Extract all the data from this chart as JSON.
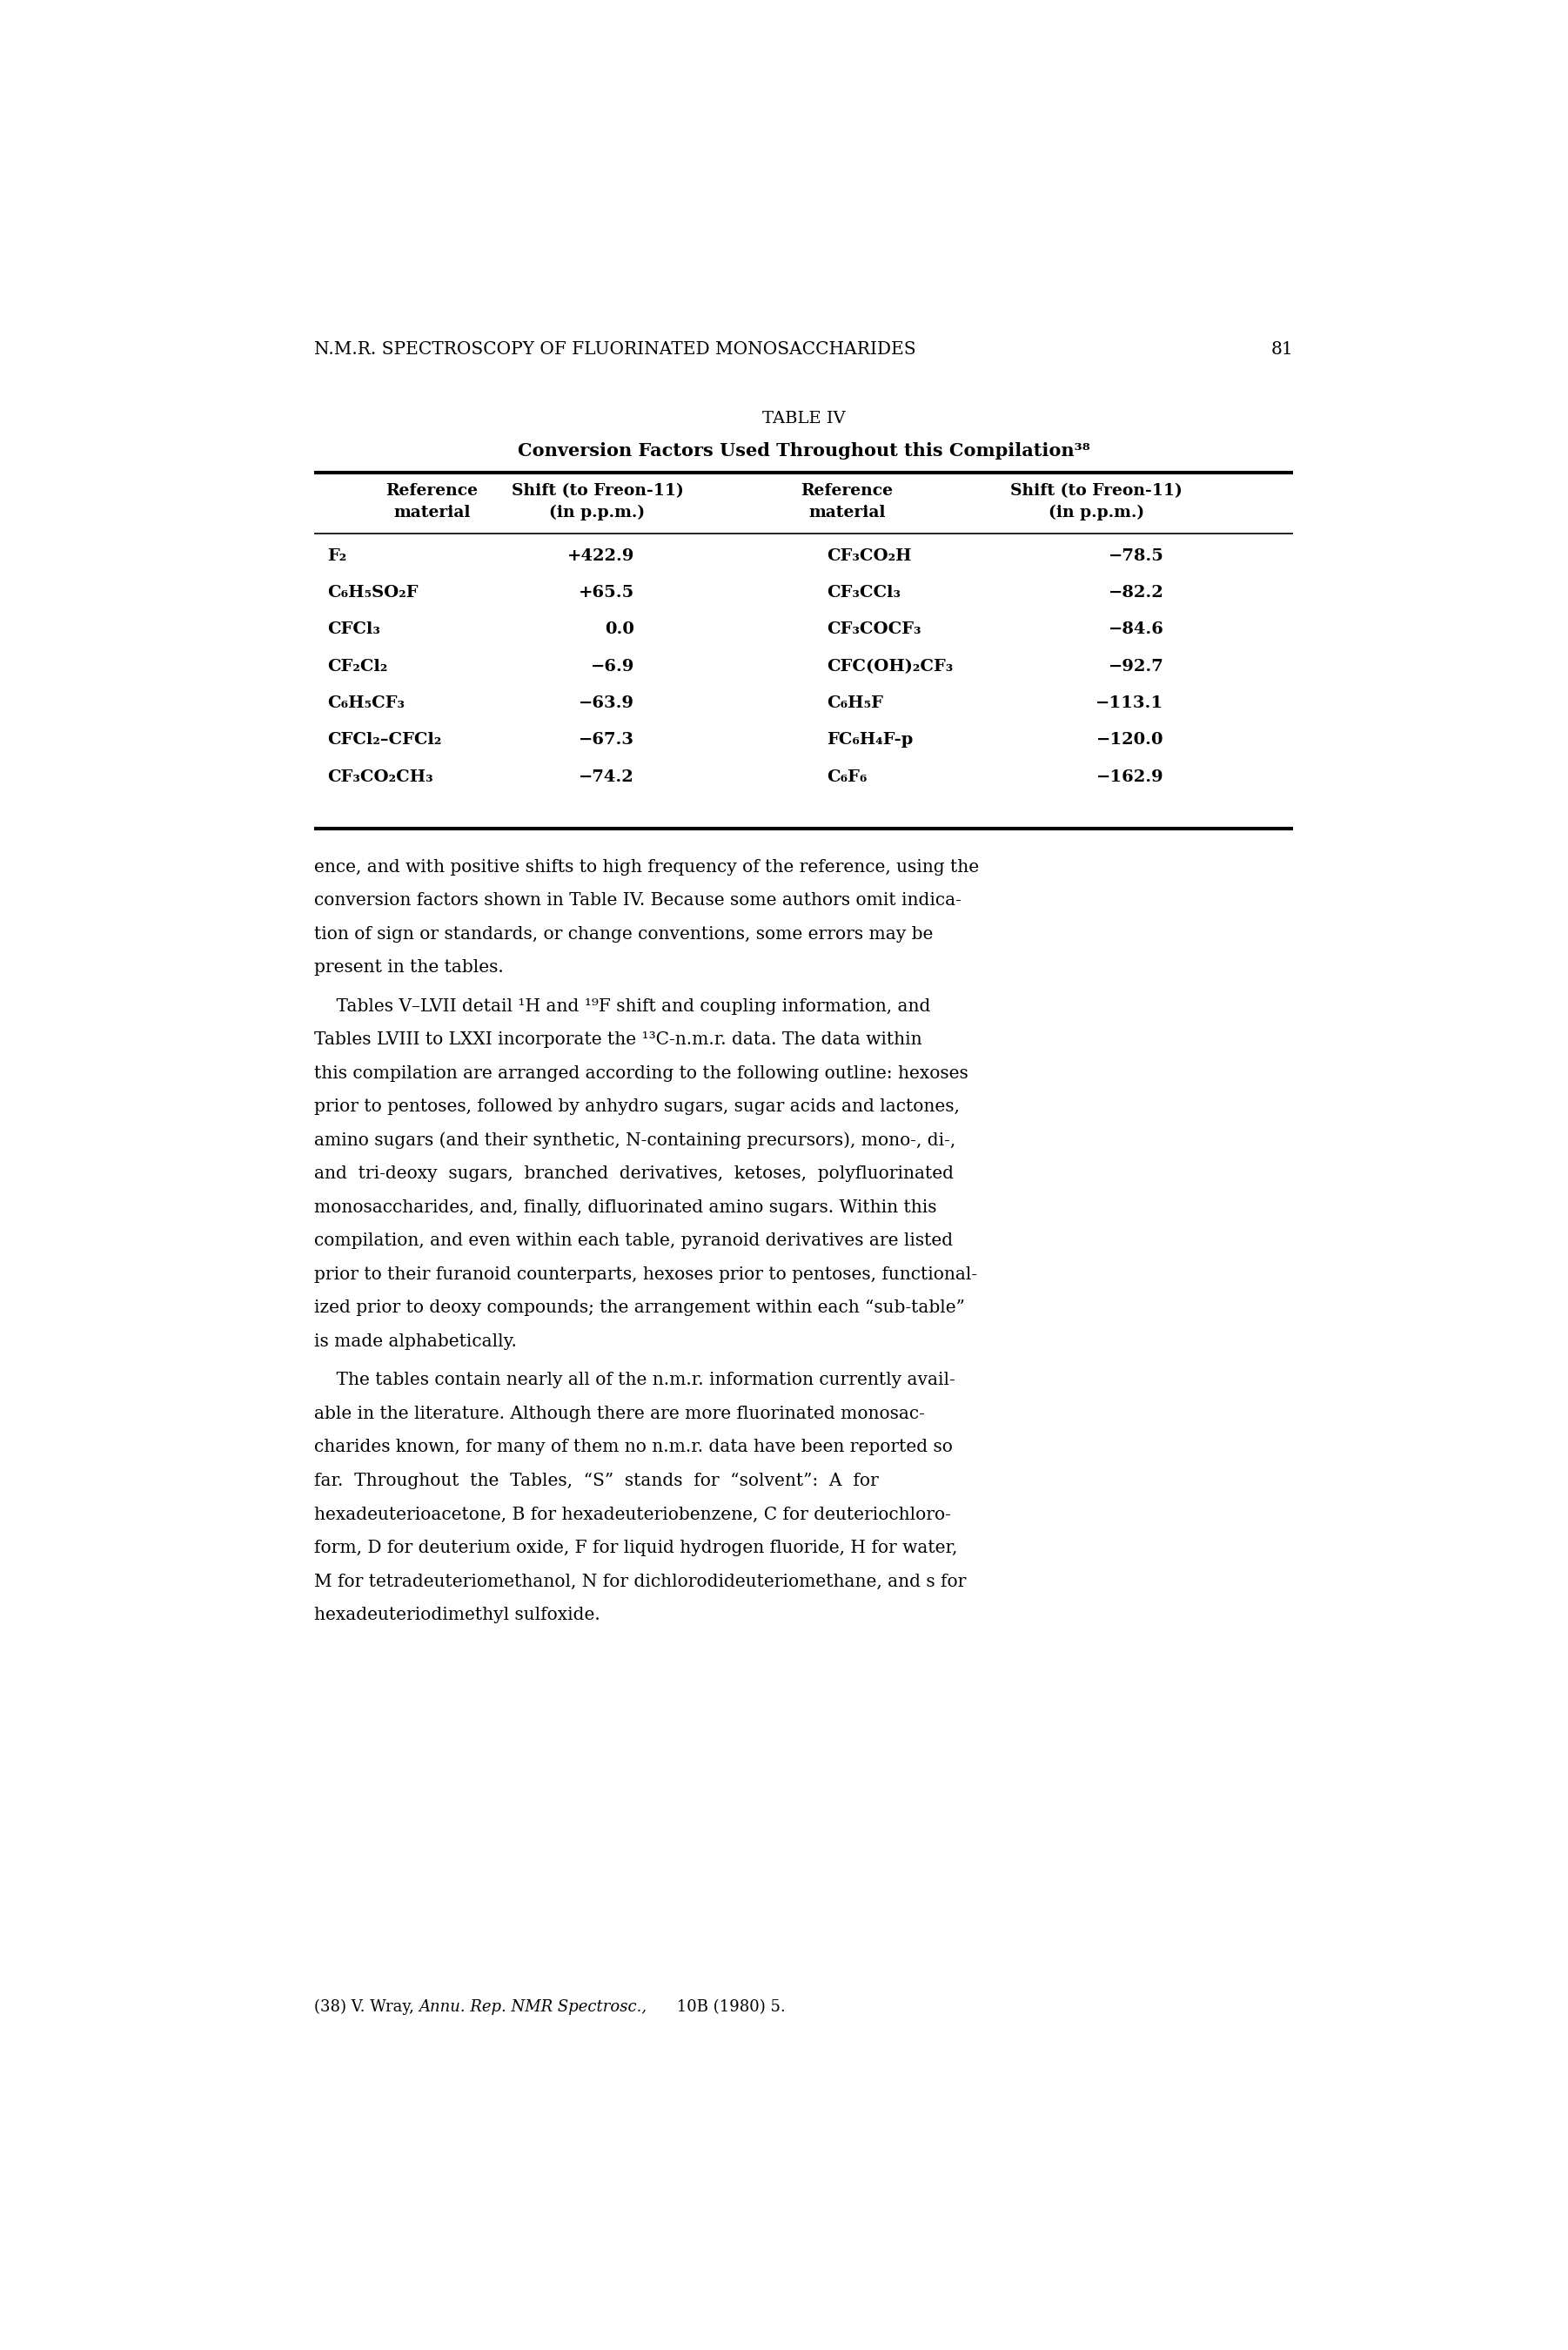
{
  "page_header": "N.M.R. SPECTROSCOPY OF FLUORINATED MONOSACCHARIDES    81",
  "table_title": "TABLE IV",
  "table_subtitle": "Conversion Factors Used Throughout this Compilation³⁸",
  "table_data": [
    [
      "F₂",
      "+422.9",
      "CF₃CO₂H",
      "−78.5"
    ],
    [
      "C₆H₅SO₂F",
      "+65.5",
      "CF₃CCl₃",
      "−82.2"
    ],
    [
      "CFCl₃",
      "0.0",
      "CF₃COCF₃",
      "−84.6"
    ],
    [
      "CF₂Cl₂",
      "−6.9",
      "CFC(OH)₂CF₃",
      "−92.7"
    ],
    [
      "C₆H₅CF₃",
      "−63.9",
      "C₆H₅F",
      "−113.1"
    ],
    [
      "CFCl₂–CFCl₂",
      "−67.3",
      "FC₆H₄F-p",
      "−120.0"
    ],
    [
      "CF₃CO₂CH₃",
      "−74.2",
      "C₆F₆",
      "−162.9"
    ]
  ],
  "para1_lines": [
    "ence, and with positive shifts to high frequency of the reference, using the",
    "conversion factors shown in Table IV. Because some authors omit indica-",
    "tion of sign or standards, or change conventions, some errors may be",
    "present in the tables."
  ],
  "para2_lines": [
    "    Tables V–LVII detail ¹H and ¹⁹F shift and coupling information, and",
    "Tables LVIII to LXXI incorporate the ¹³C-n.m.r. data. The data within",
    "this compilation are arranged according to the following outline: hexoses",
    "prior to pentoses, followed by anhydro sugars, sugar acids and lactones,",
    "amino sugars (and their synthetic, N-containing precursors), mono-, di-,",
    "and  tri-deoxy  sugars,  branched  derivatives,  ketoses,  polyfluorinated",
    "monosaccharides, and, finally, difluorinated amino sugars. Within this",
    "compilation, and even within each table, pyranoid derivatives are listed",
    "prior to their furanoid counterparts, hexoses prior to pentoses, functional-",
    "ized prior to deoxy compounds; the arrangement within each “sub-table”",
    "is made alphabetically."
  ],
  "para3_lines": [
    "    The tables contain nearly all of the n.m.r. information currently avail-",
    "able in the literature. Although there are more fluorinated monosac-",
    "charides known, for many of them no n.m.r. data have been reported so",
    "far.  Throughout  the  Tables,  “S”  stands  for  “solvent”:  A  for",
    "hexadeuterioacetone, B for hexadeuteriobenzene, C for deuteriochloro-",
    "form, D for deuterium oxide, F for liquid hydrogen fluoride, H for water,",
    "M for tetradeuteriomethanol, N for dichlorodideuteriomethane, and s for",
    "hexadeuteriodimethyl sulfoxide."
  ],
  "footnote_normal": "(38) V. Wray, ",
  "footnote_italic": "Annu. Rep. NMR Spectrosc.,",
  "footnote_rest": " 10B (1980) 5.",
  "bg_color": "#ffffff",
  "text_color": "#000000"
}
